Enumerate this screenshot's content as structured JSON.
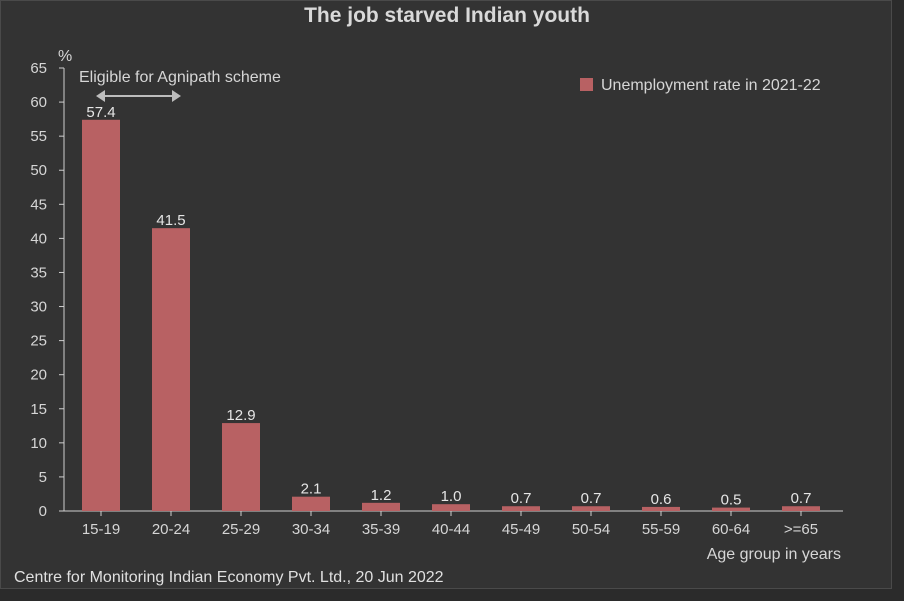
{
  "colors": {
    "bar": "#b86163",
    "axis": "#cfcfcf",
    "text": "#d6d6d6",
    "arrow": "#bdbdbd"
  },
  "chart_data": {
    "type": "bar",
    "title": "The job starved Indian youth",
    "categories": [
      "15-19",
      "20-24",
      "25-29",
      "30-34",
      "35-39",
      "40-44",
      "45-49",
      "50-54",
      "55-59",
      "60-64",
      ">=65"
    ],
    "series": [
      {
        "name": "Unemployment rate in 2021-22",
        "values": [
          57.4,
          41.5,
          12.9,
          2.1,
          1.2,
          1.0,
          0.7,
          0.7,
          0.6,
          0.5,
          0.7
        ],
        "labels": [
          "57.4",
          "41.5",
          "12.9",
          "2.1",
          "1.2",
          "1.0",
          "0.7",
          "0.7",
          "0.6",
          "0.5",
          "0.7"
        ]
      }
    ],
    "yunit": "%",
    "xlabel": "Age group in years",
    "ylabel": "%",
    "ylim": [
      0,
      65
    ],
    "yticks": [
      0,
      5,
      10,
      15,
      20,
      25,
      30,
      35,
      40,
      45,
      50,
      55,
      60,
      65
    ],
    "legend_position": "top-right",
    "annotation": {
      "text": "Eligible for Agnipath scheme",
      "span": [
        "15-19",
        "20-24"
      ]
    }
  },
  "source": "Centre for Monitoring Indian Economy Pvt. Ltd., 20 Jun 2022"
}
